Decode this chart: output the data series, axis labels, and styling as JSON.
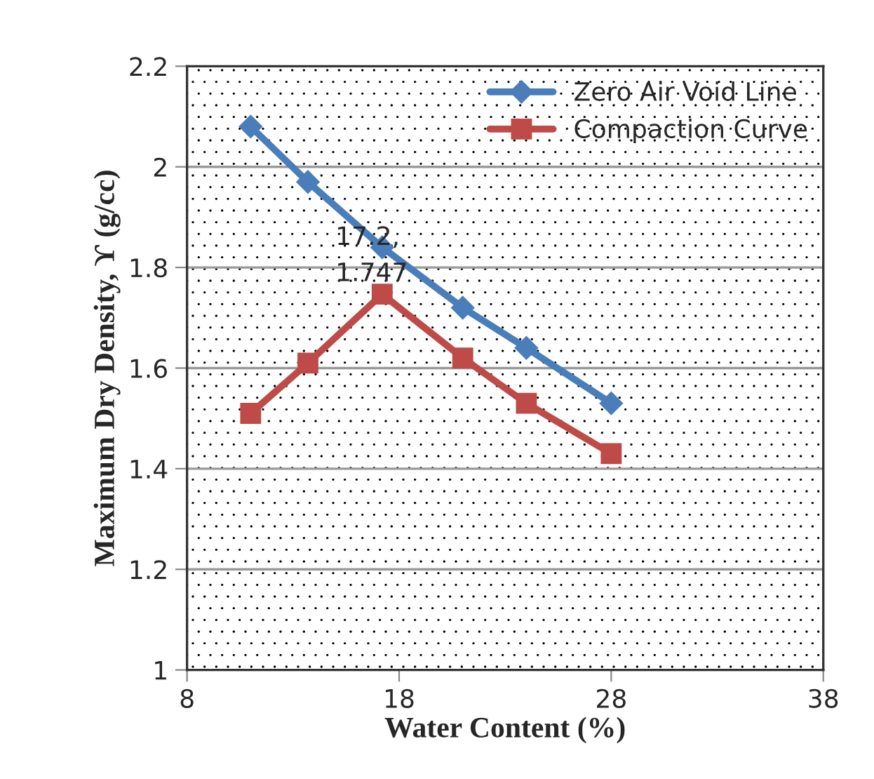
{
  "chart_data": {
    "type": "line",
    "xlabel": "Water Content (%)",
    "ylabel": "Maximum Dry Density, ϒ (g/cc)",
    "xlim": [
      8,
      38
    ],
    "xticks": [
      8,
      18,
      28,
      38
    ],
    "ylim": [
      1,
      2.2
    ],
    "yticks": [
      1,
      1.2,
      1.4,
      1.6,
      1.8,
      2,
      2.2
    ],
    "grid": "y",
    "legend": "top right",
    "series": [
      {
        "name": "Zero Air Void Line",
        "color": "#4a7ebb",
        "marker": "diamond",
        "x": [
          11,
          13.7,
          17.2,
          21,
          24,
          28
        ],
        "values": [
          2.08,
          1.97,
          1.84,
          1.72,
          1.64,
          1.53
        ]
      },
      {
        "name": "Compaction Curve",
        "color": "#be4b48",
        "marker": "square",
        "x": [
          11,
          13.7,
          17.2,
          21,
          24,
          28
        ],
        "values": [
          1.51,
          1.61,
          1.747,
          1.62,
          1.53,
          1.43
        ]
      }
    ],
    "annotations": [
      {
        "text": "17.2,\n1.747",
        "x": 17.2,
        "y": 1.747
      }
    ]
  }
}
